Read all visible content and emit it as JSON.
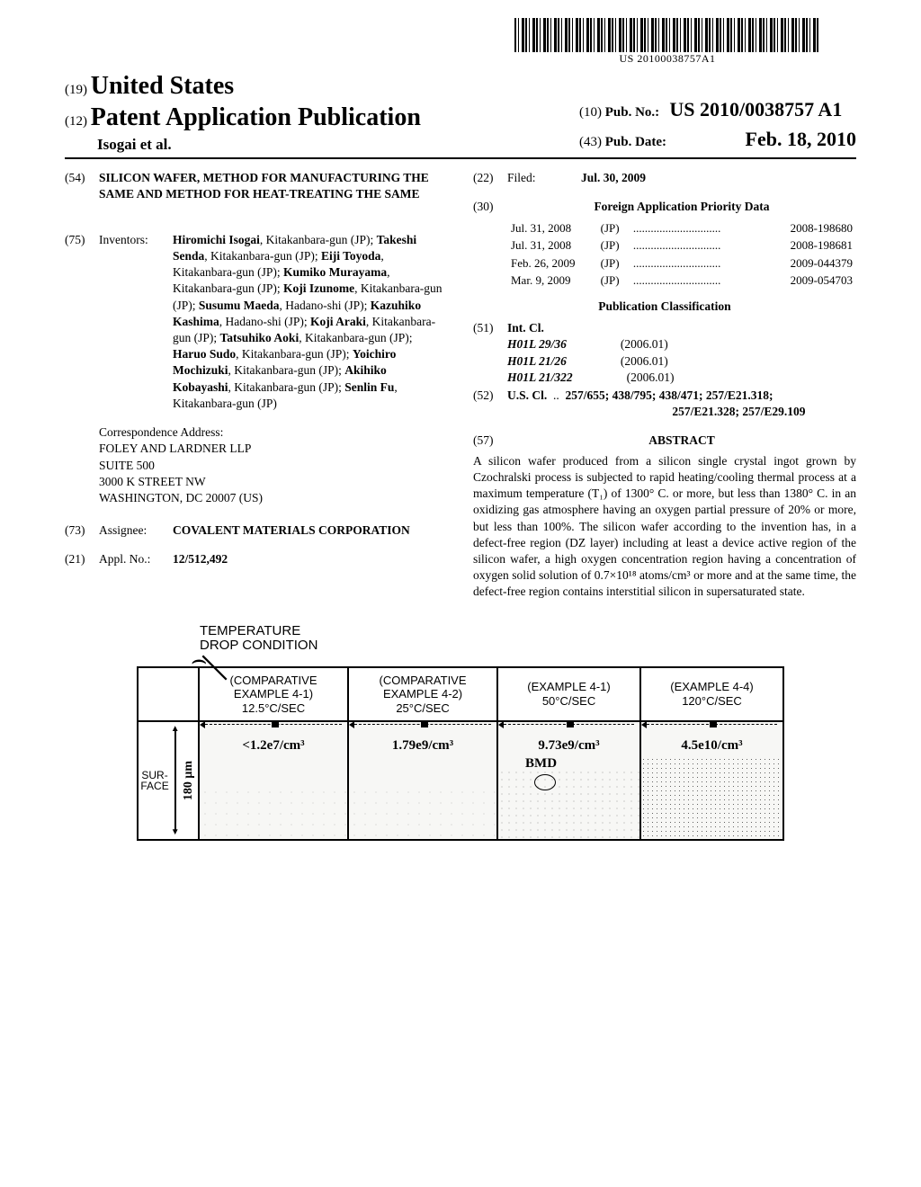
{
  "barcode_text": "US 20100038757A1",
  "header": {
    "code19": "(19)",
    "country": "United States",
    "code12": "(12)",
    "pub_type": "Patent Application Publication",
    "authors_line": "Isogai et al.",
    "code10": "(10)",
    "pubno_label": "Pub. No.:",
    "pubno": "US 2010/0038757 A1",
    "code43": "(43)",
    "pubdate_label": "Pub. Date:",
    "pubdate": "Feb. 18, 2010"
  },
  "left_col": {
    "code54": "(54)",
    "title": "SILICON WAFER, METHOD FOR MANUFACTURING THE SAME AND METHOD FOR HEAT-TREATING THE SAME",
    "code75": "(75)",
    "inventors_label": "Inventors:",
    "inventors_html": "<b>Hiromichi Isogai</b>, Kitakanbara-gun (JP); <b>Takeshi Senda</b>, Kitakanbara-gun (JP); <b>Eiji Toyoda</b>, Kitakanbara-gun (JP); <b>Kumiko Murayama</b>, Kitakanbara-gun (JP); <b>Koji Izunome</b>, Kitakanbara-gun (JP); <b>Susumu Maeda</b>, Hadano-shi (JP); <b>Kazuhiko Kashima</b>, Hadano-shi (JP); <b>Koji Araki</b>, Kitakanbara-gun (JP); <b>Tatsuhiko Aoki</b>, Kitakanbara-gun (JP); <b>Haruo Sudo</b>, Kitakanbara-gun (JP); <b>Yoichiro Mochizuki</b>, Kitakanbara-gun (JP); <b>Akihiko Kobayashi</b>, Kitakanbara-gun (JP); <b>Senlin Fu</b>, Kitakanbara-gun (JP)",
    "corr_label": "Correspondence Address:",
    "corr_lines": [
      "FOLEY AND LARDNER LLP",
      "SUITE 500",
      "3000 K STREET NW",
      "WASHINGTON, DC 20007 (US)"
    ],
    "code73": "(73)",
    "assignee_label": "Assignee:",
    "assignee": "COVALENT MATERIALS CORPORATION",
    "code21": "(21)",
    "applno_label": "Appl. No.:",
    "applno": "12/512,492"
  },
  "right_col": {
    "code22": "(22)",
    "filed_label": "Filed:",
    "filed": "Jul. 30, 2009",
    "code30": "(30)",
    "priority_hdr": "Foreign Application Priority Data",
    "priority": [
      {
        "date": "Jul. 31, 2008",
        "cc": "(JP)",
        "num": "2008-198680"
      },
      {
        "date": "Jul. 31, 2008",
        "cc": "(JP)",
        "num": "2008-198681"
      },
      {
        "date": "Feb. 26, 2009",
        "cc": "(JP)",
        "num": "2009-044379"
      },
      {
        "date": "Mar. 9, 2009",
        "cc": "(JP)",
        "num": "2009-054703"
      }
    ],
    "class_hdr": "Publication Classification",
    "code51": "(51)",
    "intcl_label": "Int. Cl.",
    "intcl": [
      {
        "sym": "H01L 29/36",
        "yr": "(2006.01)"
      },
      {
        "sym": "H01L 21/26",
        "yr": "(2006.01)"
      },
      {
        "sym": "H01L 21/322",
        "yr": "(2006.01)"
      }
    ],
    "code52": "(52)",
    "uscl_label": "U.S. Cl.",
    "uscl": "257/655; 438/795; 438/471; 257/E21.318; 257/E21.328; 257/E29.109",
    "code57": "(57)",
    "abstract_label": "ABSTRACT",
    "abstract": "A silicon wafer produced from a silicon single crystal ingot grown by Czochralski process is subjected to rapid heating/cooling thermal process at a maximum temperature (T₁) of 1300° C. or more, but less than 1380° C. in an oxidizing gas atmosphere having an oxygen partial pressure of 20% or more, but less than 100%. The silicon wafer according to the invention has, in a defect-free region (DZ layer) including at least a device active region of the silicon wafer, a high oxygen concentration region having a concentration of oxygen solid solution of 0.7×10¹⁸ atoms/cm³ or more and at the same time, the defect-free region contains interstitial silicon in supersaturated state."
  },
  "figure": {
    "temp_label_l1": "TEMPERATURE",
    "temp_label_l2": "DROP CONDITION",
    "surface": "SUR-\nFACE",
    "depth": "180 μm",
    "bmd": "BMD",
    "cols": [
      {
        "hdr1": "(COMPARATIVE",
        "hdr2": "EXAMPLE 4-1)",
        "hdr3": "12.5°C/SEC",
        "val": "<1.2e7/cm³",
        "noise": "noise-low"
      },
      {
        "hdr1": "(COMPARATIVE",
        "hdr2": "EXAMPLE 4-2)",
        "hdr3": "25°C/SEC",
        "val": "1.79e9/cm³",
        "noise": "noise-low"
      },
      {
        "hdr1": "(EXAMPLE 4-1)",
        "hdr2": "50°C/SEC",
        "hdr3": "",
        "val": "9.73e9/cm³",
        "noise": "noise-mid",
        "show_bmd": true
      },
      {
        "hdr1": "(EXAMPLE 4-4)",
        "hdr2": "120°C/SEC",
        "hdr3": "",
        "val": "4.5e10/cm³",
        "noise": "noise-high"
      }
    ]
  }
}
